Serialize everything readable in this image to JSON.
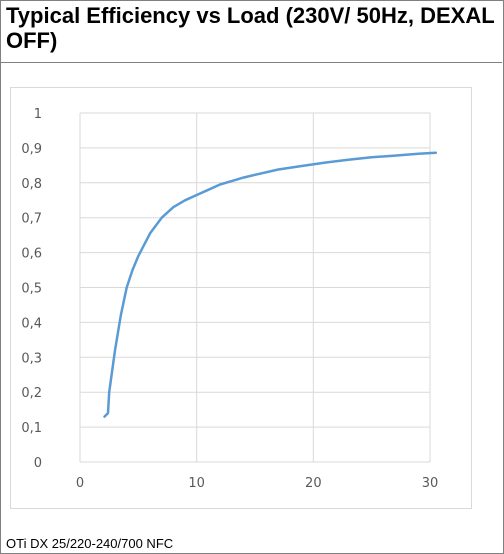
{
  "title": "Typical Efficiency vs Load (230V/ 50Hz, DEXAL OFF)",
  "footer": "OTi DX 25/220-240/700 NFC",
  "chart_data": {
    "type": "line",
    "xlim": [
      0,
      30
    ],
    "ylim": [
      0,
      1
    ],
    "x_ticks": [
      "0",
      "10",
      "20",
      "30"
    ],
    "y_ticks": [
      "0",
      "0,1",
      "0,2",
      "0,3",
      "0,4",
      "0,5",
      "0,6",
      "0,7",
      "0,8",
      "0,9",
      "1"
    ],
    "grid": true,
    "series": [
      {
        "color": "#5b9bd5",
        "x": [
          2.1,
          2.4,
          2.5,
          3.0,
          3.5,
          4.0,
          4.5,
          5.0,
          6.0,
          7.0,
          8.0,
          9.0,
          10.0,
          11.0,
          12.0,
          13.0,
          14.0,
          15.0,
          17.0,
          19.0,
          21.0,
          23.0,
          25.0,
          27.0,
          29.0,
          30.5
        ],
        "y": [
          0.13,
          0.14,
          0.2,
          0.32,
          0.42,
          0.5,
          0.55,
          0.59,
          0.655,
          0.7,
          0.73,
          0.75,
          0.765,
          0.78,
          0.795,
          0.805,
          0.815,
          0.823,
          0.838,
          0.848,
          0.858,
          0.866,
          0.873,
          0.878,
          0.883,
          0.886
        ]
      }
    ]
  },
  "colors": {
    "grid": "#d9d9d9",
    "tick_text": "#595959",
    "border": "#808080"
  }
}
